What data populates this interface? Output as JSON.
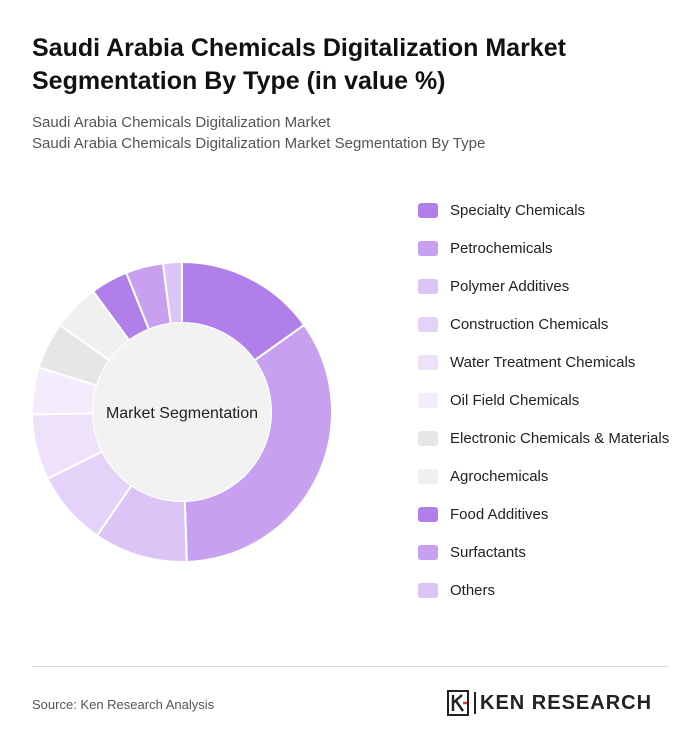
{
  "title": "Saudi Arabia Chemicals Digitalization Market Segmentation By Type (in value %)",
  "subtitle_lines": [
    "Saudi Arabia Chemicals Digitalization Market",
    "Saudi Arabia Chemicals Digitalization Market Segmentation By Type"
  ],
  "center_label": "Market Segmentation",
  "source": "Source: Ken Research Analysis",
  "logo_text": "KEN RESEARCH",
  "chart_data": {
    "type": "pie",
    "donut": true,
    "categories": [
      "Specialty Chemicals",
      "Petrochemicals",
      "Polymer Additives",
      "Construction Chemicals",
      "Water Treatment Chemicals",
      "Oil Field Chemicals",
      "Electronic Chemicals & Materials",
      "Agrochemicals",
      "Food Additives",
      "Surfactants",
      "Others"
    ],
    "values": [
      15,
      34,
      10,
      8,
      7,
      5,
      5,
      5,
      4,
      4,
      2
    ],
    "colors": [
      "#b07fea",
      "#c7a0f0",
      "#dcc4f7",
      "#e4d2f8",
      "#ede2fa",
      "#f3ecfc",
      "#e6e6e6",
      "#f0f0f0",
      "#b07fea",
      "#c7a0f0",
      "#dcc4f7"
    ],
    "legend_position": "right"
  }
}
